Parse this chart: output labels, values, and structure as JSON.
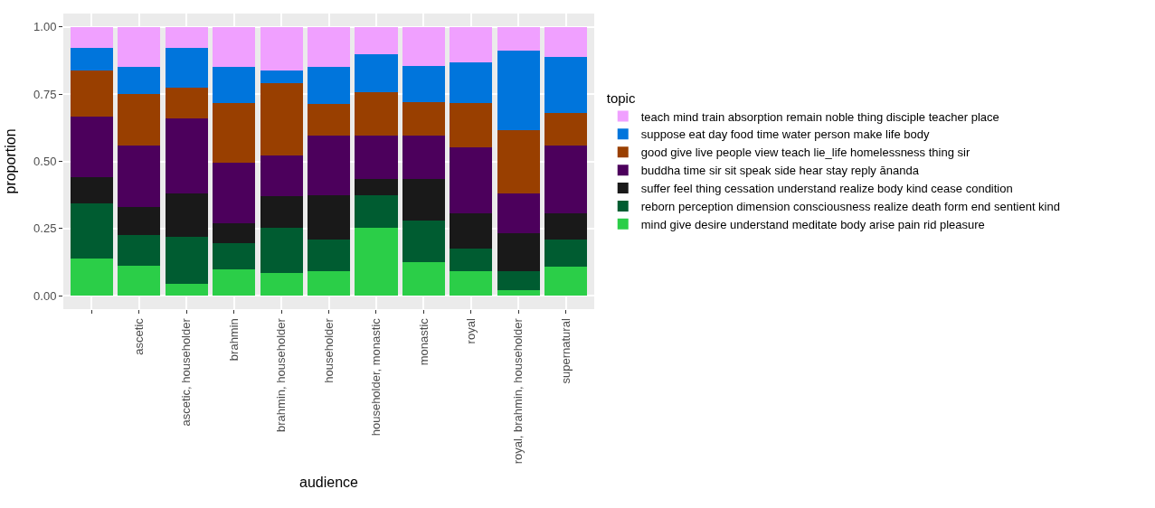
{
  "chart_data": {
    "type": "bar",
    "stacked": true,
    "xlabel": "audience",
    "ylabel": "proportion",
    "legend_title": "topic",
    "legend": "right",
    "grid": true,
    "categories": [
      null,
      "ascetic",
      "ascetic, householder",
      "brahmin",
      "brahmin, householder",
      "householder",
      "householder, monastic",
      "monastic",
      "royal",
      "royal, brahmin, householder",
      "supernatural"
    ],
    "ylim": [
      -0.05,
      1.05
    ],
    "yticks": [
      {
        "value": 0,
        "label": "0.00"
      },
      {
        "value": 0.25,
        "label": "0.25"
      },
      {
        "value": 0.5,
        "label": "0.50"
      },
      {
        "value": 0.75,
        "label": "0.75"
      },
      {
        "value": 1,
        "label": "1.00"
      }
    ],
    "series": [
      {
        "name": "mind give desire understand meditate body arise pain rid pleasure",
        "color": "#2bce48",
        "values": [
          0.138,
          0.112,
          0.045,
          0.099,
          0.084,
          0.091,
          0.254,
          0.124,
          0.091,
          0.022,
          0.108
        ]
      },
      {
        "name": "reborn perception dimension consciousness realize death form end sentient kind",
        "color": "#005c31",
        "values": [
          0.207,
          0.113,
          0.175,
          0.097,
          0.169,
          0.117,
          0.12,
          0.155,
          0.084,
          0.069,
          0.1
        ]
      },
      {
        "name": "suffer feel thing cessation understand realize body kind cease condition",
        "color": "#191919",
        "values": [
          0.096,
          0.104,
          0.162,
          0.075,
          0.118,
          0.166,
          0.06,
          0.155,
          0.133,
          0.142,
          0.1
        ]
      },
      {
        "name": "buddha time sir sit speak side hear stay reply ānanda",
        "color": "#4c005c",
        "values": [
          0.225,
          0.229,
          0.277,
          0.225,
          0.15,
          0.222,
          0.162,
          0.162,
          0.243,
          0.146,
          0.25
        ]
      },
      {
        "name": "good give live people view teach lie_life homelessness thing sir",
        "color": "#993f00",
        "values": [
          0.171,
          0.192,
          0.116,
          0.221,
          0.271,
          0.117,
          0.163,
          0.124,
          0.166,
          0.238,
          0.122
        ]
      },
      {
        "name": "suppose eat day food time water person make life body",
        "color": "#0075dc",
        "values": [
          0.085,
          0.1,
          0.147,
          0.133,
          0.045,
          0.137,
          0.141,
          0.135,
          0.15,
          0.296,
          0.209
        ]
      },
      {
        "name": "teach mind train absorption remain noble thing disciple teacher place",
        "color": "#f0a0ff",
        "values": [
          0.078,
          0.15,
          0.078,
          0.15,
          0.163,
          0.15,
          0.1,
          0.145,
          0.133,
          0.087,
          0.111
        ]
      }
    ]
  }
}
